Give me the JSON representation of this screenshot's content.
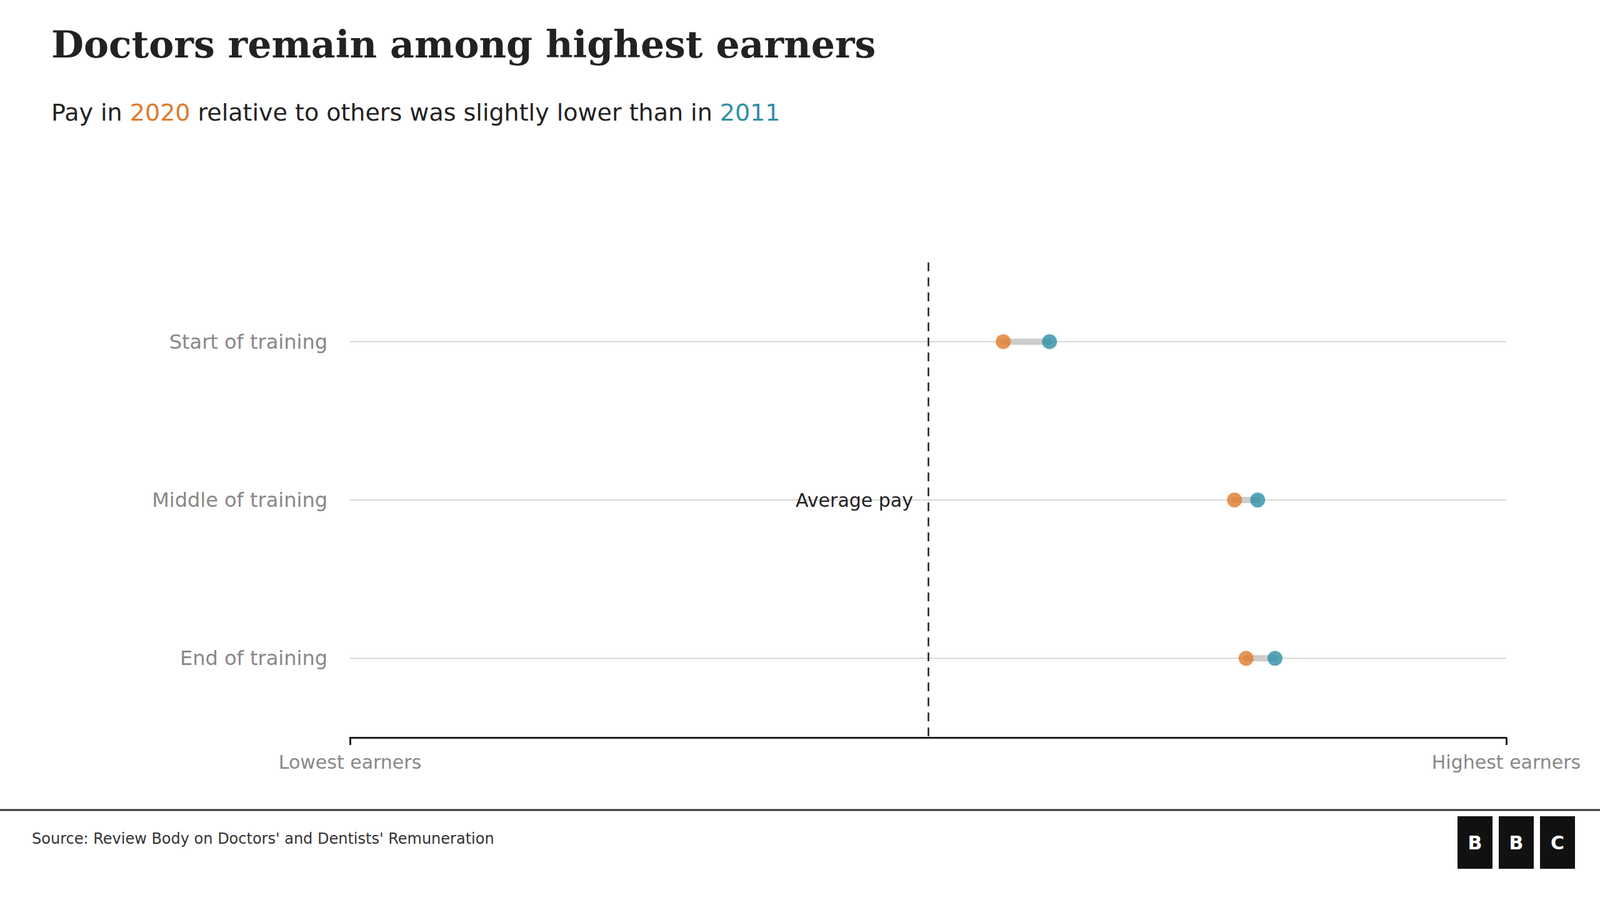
{
  "chart_data": {
    "type": "dumbbell",
    "title": "Doctors remain among highest earners",
    "subtitle": "Pay in 2020 relative to others was slightly lower than in 2011",
    "categories": [
      "Start of training",
      "Middle of training",
      "End of training"
    ],
    "series": [
      {
        "name": "2020",
        "color": "#E07B2A",
        "values": [
          0.565,
          0.765,
          0.775
        ]
      },
      {
        "name": "2011",
        "color": "#2E8FA5",
        "values": [
          0.605,
          0.785,
          0.8
        ]
      }
    ],
    "xlim": [
      0.0,
      1.0
    ],
    "xticks": [
      {
        "value": 0.0,
        "label": "Lowest earners"
      },
      {
        "value": 1.0,
        "label": "Highest earners"
      }
    ],
    "annotations": [
      {
        "text": "Average pay",
        "x": 0.5
      }
    ],
    "source": "Source: Review Body on Doctors' and Dentists' Remuneration",
    "logo": "BBC",
    "grid": false
  }
}
